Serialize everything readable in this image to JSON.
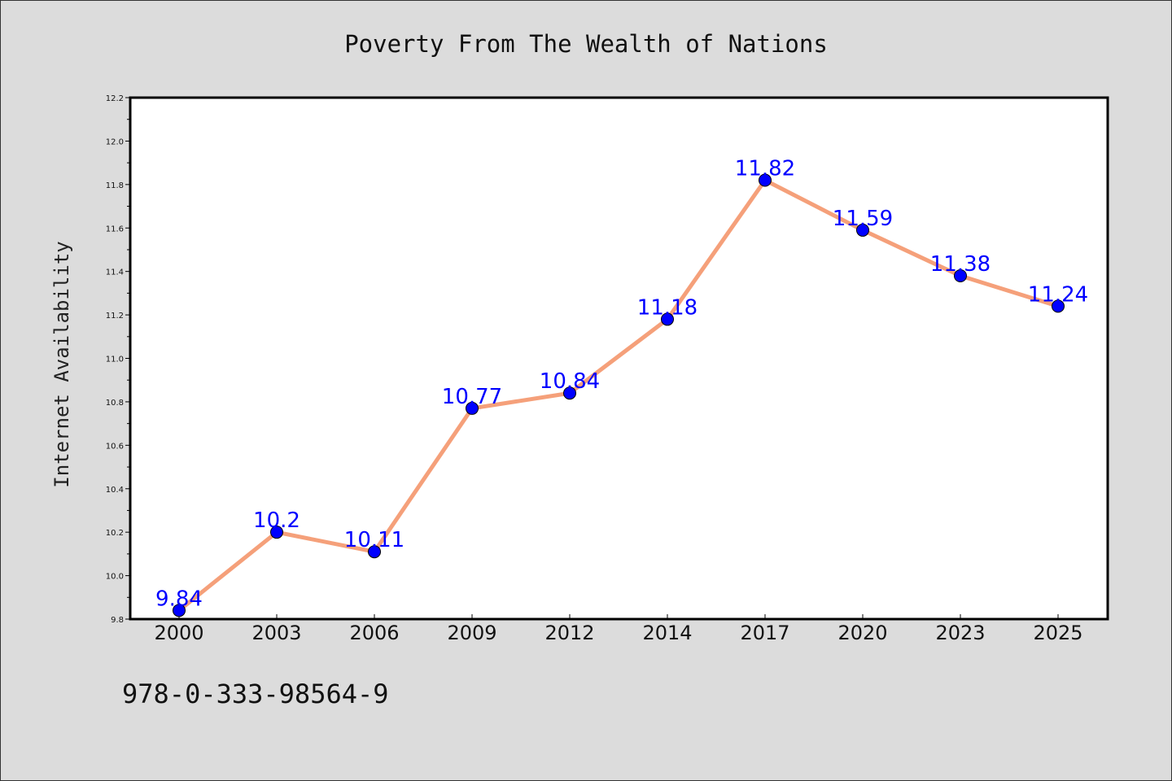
{
  "chart_data": {
    "type": "line",
    "title": "Poverty From The Wealth of Nations",
    "xlabel": "",
    "ylabel": "Internet Availability",
    "categories": [
      "2000",
      "2003",
      "2006",
      "2009",
      "2012",
      "2014",
      "2017",
      "2020",
      "2023",
      "2025"
    ],
    "values": [
      9.84,
      10.2,
      10.11,
      10.77,
      10.84,
      11.18,
      11.82,
      11.59,
      11.38,
      11.24
    ],
    "data_labels": [
      "9.84",
      "10.2",
      "10.11",
      "10.77",
      "10.84",
      "11.18",
      "11.82",
      "11.59",
      "11.38",
      "11.24"
    ],
    "ylim": [
      9.8,
      12.2
    ],
    "yticks": [
      "9.8",
      "10.0",
      "10.2",
      "10.4",
      "10.6",
      "10.8",
      "11.0",
      "11.2",
      "11.4",
      "11.6",
      "11.8",
      "12.0",
      "12.2"
    ],
    "ytick_values": [
      9.8,
      10.0,
      10.2,
      10.4,
      10.6,
      10.8,
      11.0,
      11.2,
      11.4,
      11.6,
      11.8,
      12.0,
      12.2
    ],
    "grid": false,
    "legend": "none",
    "colors": {
      "line": "#f5a07a",
      "marker": "#0000ff",
      "label": "#0000ff",
      "background": "#dcdcdc",
      "plot_background": "#ffffff"
    }
  },
  "footer": {
    "isbn": "978-0-333-98564-9"
  }
}
